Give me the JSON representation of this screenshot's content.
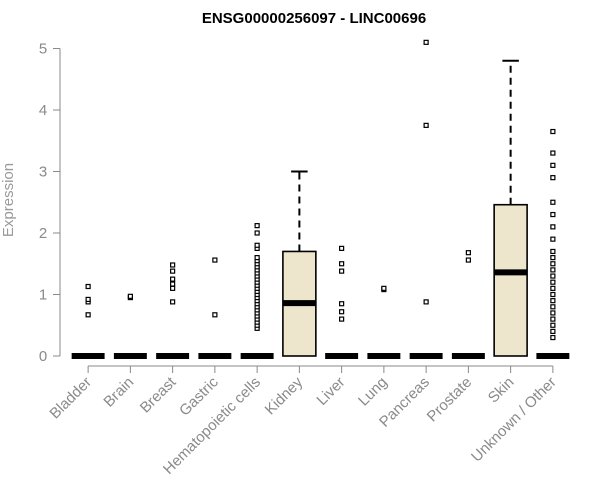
{
  "chart_data": {
    "type": "box",
    "title": "ENSG00000256097 - LINC00696",
    "xlabel": "",
    "ylabel": "Expression",
    "ylim": [
      0,
      5.1
    ],
    "yticks": [
      0,
      1,
      2,
      3,
      4,
      5
    ],
    "box_fill": "#ede6cc",
    "categories": [
      "Bladder",
      "Brain",
      "Breast",
      "Gastric",
      "Hematopoietic cells",
      "Kidney",
      "Liver",
      "Lung",
      "Pancreas",
      "Prostate",
      "Skin",
      "Unknown / Other"
    ],
    "boxes": [
      {
        "q1": 0,
        "median": 0,
        "q3": 0,
        "whisker_low": 0,
        "whisker_high": 0,
        "outliers": [
          0.67,
          0.88,
          0.92,
          1.13
        ]
      },
      {
        "q1": 0,
        "median": 0,
        "q3": 0,
        "whisker_low": 0,
        "whisker_high": 0,
        "outliers": [
          0.95,
          0.97
        ]
      },
      {
        "q1": 0,
        "median": 0,
        "q3": 0,
        "whisker_low": 0,
        "whisker_high": 0,
        "outliers": [
          0.88,
          1.1,
          1.17,
          1.25,
          1.38,
          1.48
        ]
      },
      {
        "q1": 0,
        "median": 0,
        "q3": 0,
        "whisker_low": 0,
        "whisker_high": 0,
        "outliers": [
          0.67,
          1.56
        ]
      },
      {
        "q1": 0,
        "median": 0,
        "q3": 0,
        "whisker_low": 0,
        "whisker_high": 0,
        "outliers": [
          0.45,
          0.5,
          0.55,
          0.6,
          0.65,
          0.7,
          0.75,
          0.8,
          0.85,
          0.9,
          0.95,
          1.0,
          1.05,
          1.1,
          1.15,
          1.2,
          1.25,
          1.3,
          1.35,
          1.4,
          1.45,
          1.5,
          1.55,
          1.6,
          1.75,
          1.8,
          2.0,
          2.12
        ]
      },
      {
        "q1": 0,
        "median": 0.86,
        "q3": 1.7,
        "whisker_low": 0,
        "whisker_high": 3.0,
        "outliers": []
      },
      {
        "q1": 0,
        "median": 0,
        "q3": 0,
        "whisker_low": 0,
        "whisker_high": 0,
        "outliers": [
          0.6,
          0.72,
          0.85,
          1.38,
          1.5,
          1.75
        ]
      },
      {
        "q1": 0,
        "median": 0,
        "q3": 0,
        "whisker_low": 0,
        "whisker_high": 0,
        "outliers": [
          1.08,
          1.1
        ]
      },
      {
        "q1": 0,
        "median": 0,
        "q3": 0,
        "whisker_low": 0,
        "whisker_high": 0,
        "outliers": [
          0.88,
          3.75,
          5.1
        ]
      },
      {
        "q1": 0,
        "median": 0,
        "q3": 0,
        "whisker_low": 0,
        "whisker_high": 0,
        "outliers": [
          1.56,
          1.68
        ]
      },
      {
        "q1": 0,
        "median": 1.36,
        "q3": 2.46,
        "whisker_low": 0,
        "whisker_high": 4.8,
        "outliers": []
      },
      {
        "q1": 0,
        "median": 0,
        "q3": 0,
        "whisker_low": 0,
        "whisker_high": 0,
        "outliers": [
          0.3,
          0.4,
          0.5,
          0.6,
          0.7,
          0.8,
          0.9,
          1.0,
          1.1,
          1.2,
          1.3,
          1.4,
          1.5,
          1.6,
          1.7,
          1.9,
          2.1,
          2.3,
          2.5,
          2.9,
          3.1,
          3.3,
          3.65
        ]
      }
    ]
  }
}
